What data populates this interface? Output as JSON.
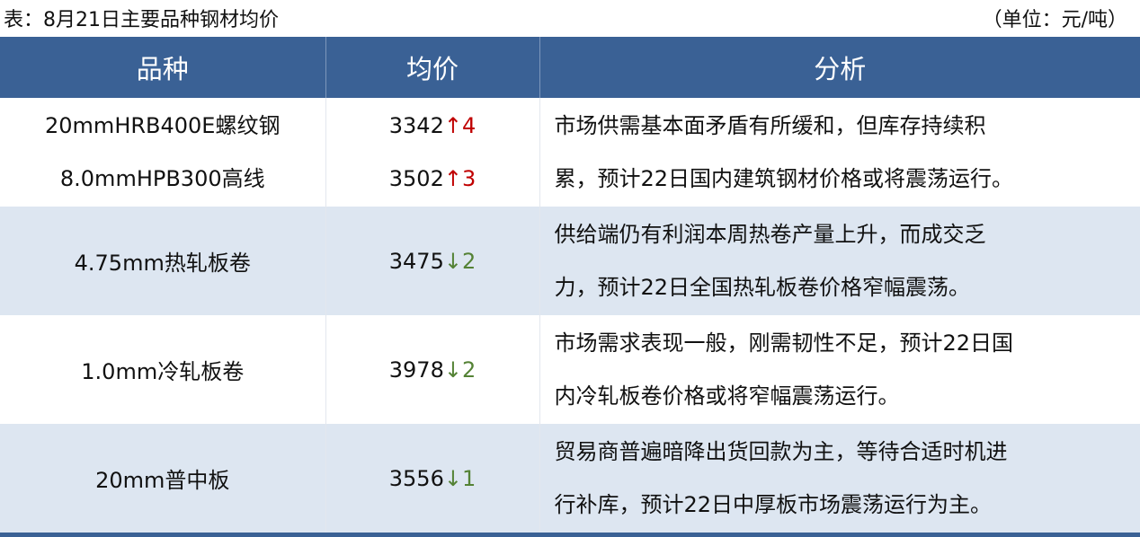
{
  "caption": "表：8月21日主要品种钢材均价",
  "unit": "（单位：元/吨）",
  "headers": [
    "品种",
    "均价",
    "分析"
  ],
  "colors": {
    "header_bg": "#3a6195",
    "alt_row_bg": "#dde6f1",
    "up": "#c00000",
    "down": "#548235"
  },
  "rows": [
    {
      "items": [
        {
          "name": "20mmHRB400E螺纹钢",
          "price": "3342",
          "dir": "↑",
          "change": "4"
        },
        {
          "name": "8.0mmHPB300高线",
          "price": "3502",
          "dir": "↑",
          "change": "3"
        }
      ],
      "analysis": [
        "市场供需基本面矛盾有所缓和，但库存持续积",
        "累，预计22日国内建筑钢材价格或将震荡运行。"
      ]
    },
    {
      "items": [
        {
          "name": "4.75mm热轧板卷",
          "price": "3475",
          "dir": "↓",
          "change": "2"
        }
      ],
      "analysis": [
        "供给端仍有利润本周热卷产量上升，而成交乏",
        "力，预计22日全国热轧板卷价格窄幅震荡。"
      ]
    },
    {
      "items": [
        {
          "name": "1.0mm冷轧板卷",
          "price": "3978",
          "dir": "↓",
          "change": "2"
        }
      ],
      "analysis": [
        "市场需求表现一般，刚需韧性不足，预计22日国",
        "内冷轧板卷价格或将窄幅震荡运行。"
      ]
    },
    {
      "items": [
        {
          "name": "20mm普中板",
          "price": "3556",
          "dir": "↓",
          "change": "1"
        }
      ],
      "analysis": [
        "贸易商普遍暗降出货回款为主，等待合适时机进",
        "行补库，预计22日中厚板市场震荡运行为主。"
      ]
    }
  ]
}
